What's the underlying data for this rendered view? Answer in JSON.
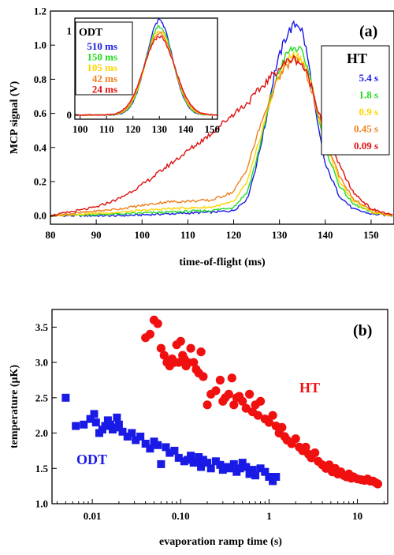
{
  "chart_data": [
    {
      "panel_label": "(a)",
      "type": "line",
      "xlabel": "time-of-flight (ms)",
      "ylabel": "MCP signal (V)",
      "xlim": [
        80,
        155
      ],
      "ylim": [
        -0.05,
        1.2
      ],
      "xticks": [
        80,
        90,
        100,
        110,
        120,
        130,
        140,
        150
      ],
      "yticks": [
        0.0,
        0.2,
        0.4,
        0.6,
        0.8,
        1.0,
        1.2
      ],
      "legend": {
        "title": "HT",
        "placement": "top-right"
      },
      "series": [
        {
          "name": "5.4 s",
          "color": "#1a1ae6",
          "x": [
            80,
            95,
            105,
            115,
            120,
            123,
            125,
            127,
            129,
            131,
            132,
            133,
            134,
            135,
            136,
            137,
            138,
            140,
            143,
            146,
            150,
            155
          ],
          "y": [
            0.0,
            0.0,
            0.01,
            0.02,
            0.03,
            0.1,
            0.3,
            0.55,
            0.85,
            1.02,
            1.08,
            1.11,
            1.13,
            1.08,
            0.95,
            0.78,
            0.58,
            0.3,
            0.12,
            0.04,
            0.01,
            0.0
          ]
        },
        {
          "name": "1.8 s",
          "color": "#22dd22",
          "x": [
            80,
            95,
            105,
            115,
            120,
            123,
            125,
            127,
            129,
            131,
            132,
            133,
            134,
            135,
            136,
            137,
            138,
            140,
            143,
            146,
            150,
            155
          ],
          "y": [
            0.0,
            0.01,
            0.02,
            0.03,
            0.05,
            0.14,
            0.33,
            0.56,
            0.78,
            0.92,
            0.96,
            0.98,
            0.98,
            0.95,
            0.88,
            0.78,
            0.64,
            0.4,
            0.18,
            0.07,
            0.02,
            0.0
          ]
        },
        {
          "name": "0.9 s",
          "color": "#ffd400",
          "x": [
            80,
            95,
            105,
            115,
            120,
            123,
            125,
            127,
            129,
            131,
            132,
            133,
            134,
            135,
            136,
            137,
            138,
            140,
            143,
            146,
            150,
            155
          ],
          "y": [
            0.0,
            0.02,
            0.04,
            0.05,
            0.08,
            0.2,
            0.38,
            0.58,
            0.76,
            0.88,
            0.92,
            0.94,
            0.94,
            0.91,
            0.85,
            0.76,
            0.64,
            0.43,
            0.21,
            0.09,
            0.02,
            0.0
          ]
        },
        {
          "name": "0.45 s",
          "color": "#f08020",
          "x": [
            80,
            95,
            105,
            115,
            120,
            123,
            125,
            127,
            129,
            131,
            132,
            133,
            134,
            135,
            136,
            137,
            138,
            140,
            143,
            146,
            150,
            155
          ],
          "y": [
            0.0,
            0.04,
            0.08,
            0.09,
            0.14,
            0.28,
            0.46,
            0.62,
            0.76,
            0.86,
            0.89,
            0.91,
            0.91,
            0.88,
            0.82,
            0.74,
            0.63,
            0.45,
            0.24,
            0.1,
            0.03,
            0.0
          ]
        },
        {
          "name": "0.09 s",
          "color": "#e01010",
          "x": [
            80,
            90,
            95,
            100,
            105,
            110,
            115,
            120,
            123,
            125,
            127,
            129,
            131,
            132,
            133,
            134,
            135,
            136,
            137,
            138,
            140,
            143,
            146,
            150,
            155
          ],
          "y": [
            0.0,
            0.05,
            0.1,
            0.18,
            0.28,
            0.38,
            0.48,
            0.6,
            0.66,
            0.72,
            0.78,
            0.84,
            0.89,
            0.91,
            0.92,
            0.91,
            0.88,
            0.83,
            0.76,
            0.66,
            0.5,
            0.3,
            0.14,
            0.04,
            0.0
          ]
        }
      ],
      "inset": {
        "type": "line",
        "xlim": [
          98,
          152
        ],
        "ylim": [
          -0.05,
          1.15
        ],
        "xticks": [
          100,
          110,
          120,
          130,
          140,
          150
        ],
        "yticks": [
          0,
          1
        ],
        "legend": {
          "title": "ODT",
          "placement": "top-left"
        },
        "series": [
          {
            "name": "510 ms",
            "color": "#1a1ae6",
            "peak": 1.12,
            "sigma": 5.0
          },
          {
            "name": "150 ms",
            "color": "#22dd22",
            "peak": 1.05,
            "sigma": 5.2
          },
          {
            "name": "105 ms",
            "color": "#ffd400",
            "peak": 1.0,
            "sigma": 5.4
          },
          {
            "name": "42 ms",
            "color": "#f08020",
            "peak": 0.97,
            "sigma": 5.6
          },
          {
            "name": "24 ms",
            "color": "#e01010",
            "peak": 0.93,
            "sigma": 5.9
          }
        ],
        "center": 130
      }
    },
    {
      "panel_label": "(b)",
      "type": "scatter",
      "xlabel": "evaporation ramp time (s)",
      "ylabel": "temperature  (μK)",
      "xscale": "log",
      "xlim": [
        0.0035,
        22
      ],
      "ylim": [
        1.0,
        3.75
      ],
      "xticks": [
        0.01,
        0.1,
        1,
        10
      ],
      "xticklabels": [
        "0.01",
        "0.10",
        "1",
        "10"
      ],
      "yticks": [
        1.0,
        1.5,
        2.0,
        2.5,
        3.0,
        3.5
      ],
      "yticklabels": [
        "1.0",
        "1.5",
        "2.0",
        "2.5",
        "3.0",
        "3.5"
      ],
      "series": [
        {
          "name": "ODT",
          "color": "#1a1ae6",
          "marker": "square",
          "x": [
            0.005,
            0.0065,
            0.008,
            0.0095,
            0.0105,
            0.011,
            0.012,
            0.013,
            0.014,
            0.015,
            0.016,
            0.017,
            0.018,
            0.019,
            0.02,
            0.022,
            0.025,
            0.028,
            0.031,
            0.035,
            0.04,
            0.045,
            0.05,
            0.055,
            0.06,
            0.068,
            0.075,
            0.085,
            0.095,
            0.11,
            0.12,
            0.13,
            0.14,
            0.15,
            0.16,
            0.17,
            0.18,
            0.2,
            0.22,
            0.25,
            0.28,
            0.3,
            0.33,
            0.36,
            0.4,
            0.43,
            0.47,
            0.5,
            0.55,
            0.6,
            0.65,
            0.7,
            0.8,
            0.9,
            1.0,
            1.1,
            1.2
          ],
          "y": [
            2.5,
            2.1,
            2.12,
            2.2,
            2.27,
            2.15,
            2.0,
            2.05,
            2.1,
            2.18,
            2.12,
            2.05,
            2.08,
            2.22,
            2.12,
            2.02,
            1.95,
            2.0,
            1.9,
            1.95,
            1.85,
            1.78,
            1.88,
            1.83,
            1.56,
            1.8,
            1.72,
            1.75,
            1.65,
            1.6,
            1.62,
            1.68,
            1.58,
            1.6,
            1.66,
            1.52,
            1.62,
            1.58,
            1.5,
            1.6,
            1.55,
            1.48,
            1.52,
            1.5,
            1.56,
            1.45,
            1.5,
            1.58,
            1.52,
            1.42,
            1.48,
            1.4,
            1.5,
            1.45,
            1.38,
            1.32,
            1.38
          ]
        },
        {
          "name": "HT",
          "color": "#f01010",
          "marker": "circle",
          "x": [
            0.04,
            0.045,
            0.05,
            0.055,
            0.06,
            0.065,
            0.07,
            0.075,
            0.08,
            0.085,
            0.09,
            0.095,
            0.1,
            0.105,
            0.11,
            0.115,
            0.12,
            0.13,
            0.14,
            0.15,
            0.16,
            0.17,
            0.18,
            0.2,
            0.22,
            0.25,
            0.28,
            0.3,
            0.32,
            0.35,
            0.38,
            0.4,
            0.43,
            0.46,
            0.5,
            0.55,
            0.6,
            0.65,
            0.7,
            0.75,
            0.8,
            0.9,
            1.0,
            1.1,
            1.2,
            1.3,
            1.4,
            1.5,
            1.6,
            1.8,
            2.0,
            2.2,
            2.4,
            2.6,
            2.8,
            3.0,
            3.3,
            3.6,
            4.0,
            4.4,
            4.8,
            5.2,
            5.6,
            6.0,
            6.5,
            7.0,
            7.5,
            8.0,
            8.5,
            9.0,
            10,
            11,
            12,
            13,
            14,
            15,
            16,
            17
          ],
          "y": [
            3.35,
            3.4,
            3.6,
            3.55,
            3.2,
            3.1,
            3.0,
            2.95,
            3.05,
            3.0,
            3.25,
            3.0,
            3.3,
            3.1,
            3.05,
            2.95,
            3.0,
            3.2,
            3.0,
            2.9,
            2.85,
            3.15,
            2.8,
            2.4,
            2.55,
            2.6,
            2.75,
            2.45,
            2.5,
            2.55,
            2.78,
            2.4,
            2.5,
            2.52,
            2.45,
            2.35,
            2.55,
            2.3,
            2.4,
            2.25,
            2.45,
            2.2,
            2.15,
            2.25,
            2.1,
            2.0,
            2.08,
            1.95,
            1.9,
            1.85,
            1.92,
            1.8,
            1.75,
            1.8,
            1.7,
            1.65,
            1.72,
            1.6,
            1.55,
            1.5,
            1.55,
            1.45,
            1.5,
            1.42,
            1.45,
            1.4,
            1.38,
            1.42,
            1.36,
            1.38,
            1.35,
            1.34,
            1.33,
            1.35,
            1.32,
            1.32,
            1.3,
            1.28
          ]
        }
      ]
    }
  ]
}
